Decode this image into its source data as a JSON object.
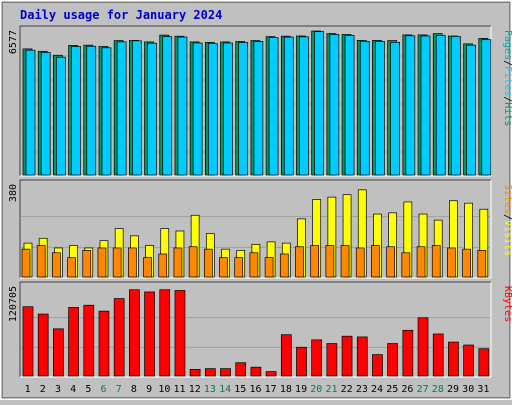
{
  "title": "Daily usage for January 2024",
  "colors": {
    "background": "#c0c0c0",
    "title": "#0000cc",
    "hits": "#009966",
    "files": "#00ccff",
    "pages": "#00aaaa",
    "visits": "#ffff00",
    "sites": "#ff8800",
    "kbytes": "#ff0000",
    "weekend_label": "#008040",
    "weekday_label": "#000000"
  },
  "chart_data": [
    {
      "type": "bar",
      "name": "hits-files-pages",
      "axis_max_label": "6577",
      "ylim": [
        0,
        6577
      ],
      "legend": [
        "Pages",
        "/",
        "Files",
        "/",
        "Hits"
      ],
      "categories": [
        "1",
        "2",
        "3",
        "4",
        "5",
        "6",
        "7",
        "8",
        "9",
        "10",
        "11",
        "12",
        "13",
        "14",
        "15",
        "16",
        "17",
        "18",
        "19",
        "20",
        "21",
        "22",
        "23",
        "24",
        "25",
        "26",
        "27",
        "28",
        "29",
        "30",
        "31"
      ],
      "weekend": [
        6,
        7,
        13,
        14,
        20,
        21,
        27,
        28
      ],
      "series": [
        {
          "name": "Hits",
          "values": [
            5760,
            5650,
            5470,
            5920,
            5930,
            5870,
            6140,
            6150,
            6080,
            6390,
            6340,
            6080,
            6060,
            6080,
            6100,
            6140,
            6320,
            6340,
            6350,
            6577,
            6460,
            6420,
            6150,
            6150,
            6140,
            6400,
            6400,
            6460,
            6350,
            5990,
            6240
          ]
        },
        {
          "name": "Files",
          "values": [
            5700,
            5600,
            5380,
            5870,
            5880,
            5810,
            6080,
            6130,
            6020,
            6320,
            6300,
            6030,
            6000,
            6030,
            6050,
            6100,
            6280,
            6300,
            6310,
            6550,
            6420,
            6380,
            6100,
            6100,
            6060,
            6360,
            6350,
            6380,
            6330,
            5930,
            6180
          ]
        }
      ]
    },
    {
      "type": "bar",
      "name": "visits-sites",
      "axis_max_label": "380",
      "ylim": [
        0,
        380
      ],
      "legend": [
        "Sites",
        "/",
        "Visits"
      ],
      "categories": [
        "1",
        "2",
        "3",
        "4",
        "5",
        "6",
        "7",
        "8",
        "9",
        "10",
        "11",
        "12",
        "13",
        "14",
        "15",
        "16",
        "17",
        "18",
        "19",
        "20",
        "21",
        "22",
        "23",
        "24",
        "25",
        "26",
        "27",
        "28",
        "29",
        "30",
        "31"
      ],
      "series": [
        {
          "name": "Visits",
          "values": [
            140,
            160,
            120,
            130,
            120,
            150,
            200,
            170,
            130,
            200,
            190,
            255,
            180,
            115,
            110,
            135,
            145,
            140,
            240,
            320,
            330,
            340,
            360,
            260,
            265,
            310,
            260,
            235,
            315,
            305,
            280
          ]
        },
        {
          "name": "Sites",
          "values": [
            115,
            130,
            100,
            80,
            110,
            120,
            120,
            120,
            80,
            95,
            120,
            125,
            115,
            80,
            80,
            100,
            80,
            95,
            125,
            130,
            130,
            130,
            120,
            130,
            125,
            100,
            125,
            130,
            120,
            115,
            110
          ]
        }
      ]
    },
    {
      "type": "bar",
      "name": "kbytes",
      "axis_max_label": "120705",
      "ylim": [
        0,
        120705
      ],
      "legend": [
        "KBytes"
      ],
      "categories": [
        "1",
        "2",
        "3",
        "4",
        "5",
        "6",
        "7",
        "8",
        "9",
        "10",
        "11",
        "12",
        "13",
        "14",
        "15",
        "16",
        "17",
        "18",
        "19",
        "20",
        "21",
        "22",
        "23",
        "24",
        "25",
        "26",
        "27",
        "28",
        "29",
        "30",
        "31"
      ],
      "series": [
        {
          "name": "KBytes",
          "values": [
            94000,
            84000,
            64000,
            93000,
            96000,
            88000,
            105000,
            117000,
            114000,
            117000,
            116000,
            9000,
            10000,
            10000,
            18000,
            12000,
            6000,
            56000,
            39000,
            49000,
            44000,
            54000,
            53000,
            29000,
            44000,
            62000,
            79000,
            57000,
            46000,
            42000,
            37000
          ]
        }
      ]
    }
  ]
}
